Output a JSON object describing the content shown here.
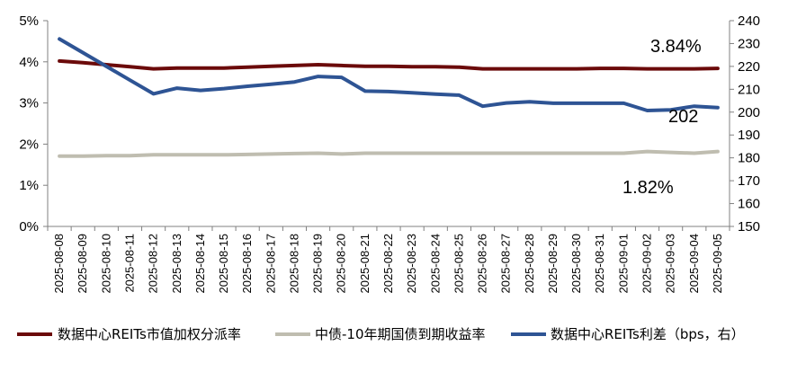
{
  "chart_data": {
    "type": "line",
    "categories": [
      "2025-08-08",
      "2025-08-09",
      "2025-08-10",
      "2025-08-11",
      "2025-08-12",
      "2025-08-13",
      "2025-08-14",
      "2025-08-15",
      "2025-08-16",
      "2025-08-17",
      "2025-08-18",
      "2025-08-19",
      "2025-08-20",
      "2025-08-21",
      "2025-08-22",
      "2025-08-23",
      "2025-08-24",
      "2025-08-25",
      "2025-08-26",
      "2025-08-27",
      "2025-08-28",
      "2025-08-29",
      "2025-08-30",
      "2025-08-31",
      "2025-09-01",
      "2025-09-02",
      "2025-09-03",
      "2025-09-04",
      "2025-09-05"
    ],
    "y_left": {
      "min": 0,
      "max": 5,
      "step": 1,
      "tick_labels": [
        "0%",
        "1%",
        "2%",
        "3%",
        "4%",
        "5%"
      ]
    },
    "y_right": {
      "min": 150,
      "max": 240,
      "step": 10,
      "tick_labels": [
        "150",
        "160",
        "170",
        "180",
        "190",
        "200",
        "210",
        "220",
        "230",
        "240"
      ]
    },
    "series": [
      {
        "name": "数据中心REITs市值加权分派率",
        "axis": "left",
        "color": "#6B0A0A",
        "values": [
          4.02,
          3.98,
          3.93,
          3.88,
          3.83,
          3.85,
          3.85,
          3.85,
          3.87,
          3.89,
          3.91,
          3.93,
          3.91,
          3.89,
          3.89,
          3.88,
          3.88,
          3.87,
          3.83,
          3.83,
          3.83,
          3.83,
          3.83,
          3.84,
          3.84,
          3.83,
          3.83,
          3.83,
          3.84
        ]
      },
      {
        "name": "中债-10年期国债到期收益率",
        "axis": "left",
        "color": "#BFBDB0",
        "values": [
          1.71,
          1.71,
          1.72,
          1.72,
          1.74,
          1.74,
          1.74,
          1.74,
          1.75,
          1.76,
          1.77,
          1.78,
          1.76,
          1.78,
          1.78,
          1.78,
          1.78,
          1.78,
          1.78,
          1.78,
          1.78,
          1.78,
          1.78,
          1.78,
          1.78,
          1.82,
          1.8,
          1.78,
          1.82
        ]
      },
      {
        "name": "数据中心REITs利差（bps，右）",
        "axis": "right",
        "color": "#2E5494",
        "values": [
          232,
          226,
          220,
          214,
          208,
          210.5,
          209.5,
          210.3,
          211.3,
          212.2,
          213.2,
          215.6,
          215.2,
          209.2,
          209.0,
          208.5,
          207.9,
          207.4,
          202.6,
          204.0,
          204.5,
          203.9,
          203.9,
          203.9,
          203.9,
          200.7,
          201.0,
          202.6,
          202
        ]
      }
    ],
    "annotations": [
      {
        "text": "3.84%",
        "series": 0
      },
      {
        "text": "202",
        "series": 2
      },
      {
        "text": "1.82%",
        "series": 1
      }
    ],
    "legend": {
      "position": "bottom"
    },
    "grid": false
  }
}
